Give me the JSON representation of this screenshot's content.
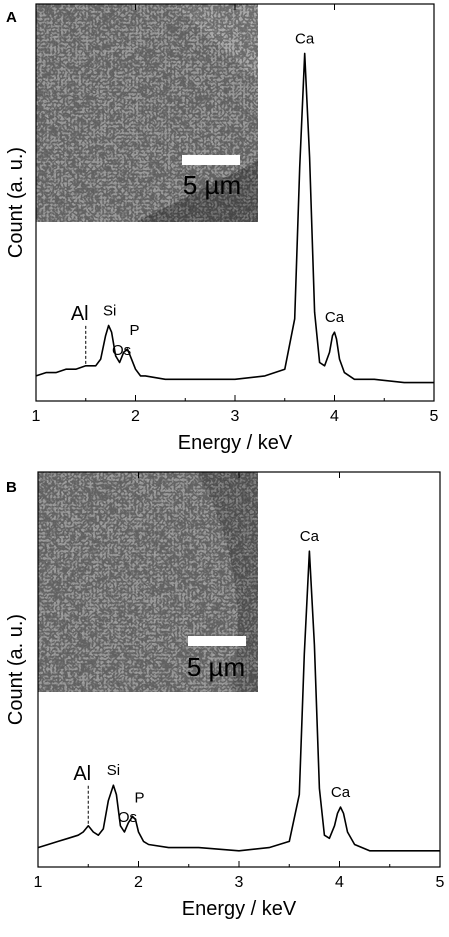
{
  "chart_data": [
    {
      "panel_label": "A",
      "type": "line",
      "xlabel": "Energy / keV",
      "ylabel": "Count (a. u.)",
      "xlim": [
        1,
        5
      ],
      "xticks": [
        1,
        2,
        3,
        4,
        5
      ],
      "ylim": [
        0,
        100
      ],
      "grid": false,
      "x": [
        1.0,
        1.1,
        1.2,
        1.3,
        1.4,
        1.5,
        1.6,
        1.65,
        1.7,
        1.73,
        1.76,
        1.8,
        1.84,
        1.88,
        1.92,
        1.96,
        2.0,
        2.05,
        2.1,
        2.3,
        2.6,
        3.0,
        3.3,
        3.5,
        3.6,
        3.65,
        3.7,
        3.75,
        3.8,
        3.85,
        3.9,
        3.95,
        3.98,
        4.0,
        4.02,
        4.05,
        4.1,
        4.2,
        4.4,
        4.7,
        5.0
      ],
      "y": [
        3,
        4,
        4,
        5,
        5,
        6,
        6,
        8,
        15,
        18,
        16,
        9,
        7,
        10,
        11,
        8,
        5,
        3,
        3,
        2,
        2,
        2,
        3,
        5,
        20,
        65,
        99,
        68,
        22,
        7,
        6,
        10,
        15,
        16,
        14,
        8,
        4,
        2,
        2,
        1,
        1
      ],
      "annotations": [
        {
          "text": "Ca",
          "x": 3.7,
          "y": 99,
          "marker": false
        },
        {
          "text": "Ca",
          "x": 4.0,
          "y": 16,
          "marker": false
        },
        {
          "text": "Al",
          "x": 1.5,
          "y": 6,
          "marker": true
        },
        {
          "text": "Si",
          "x": 1.74,
          "y": 18,
          "marker": false
        },
        {
          "text": "P",
          "x": 1.95,
          "y": 11,
          "marker": false
        },
        {
          "text": "Os",
          "x": 1.9,
          "y": 8,
          "marker": false
        }
      ],
      "inset": {
        "scale_text": "5 µm"
      }
    },
    {
      "panel_label": "B",
      "type": "line",
      "xlabel": "Energy / keV",
      "ylabel": "Count (a. u.)",
      "xlim": [
        1,
        5
      ],
      "xticks": [
        1,
        2,
        3,
        4,
        5
      ],
      "ylim": [
        0,
        100
      ],
      "grid": false,
      "x": [
        1.0,
        1.1,
        1.2,
        1.3,
        1.4,
        1.45,
        1.5,
        1.55,
        1.6,
        1.65,
        1.7,
        1.75,
        1.78,
        1.82,
        1.86,
        1.9,
        1.94,
        1.97,
        2.0,
        2.05,
        2.1,
        2.3,
        2.6,
        3.0,
        3.3,
        3.5,
        3.6,
        3.65,
        3.7,
        3.75,
        3.8,
        3.85,
        3.9,
        3.95,
        3.98,
        4.01,
        4.04,
        4.08,
        4.15,
        4.3,
        4.6,
        5.0
      ],
      "y": [
        3,
        4,
        5,
        6,
        7,
        8,
        10,
        8,
        7,
        9,
        18,
        23,
        20,
        10,
        8,
        11,
        13,
        12,
        8,
        5,
        4,
        3,
        3,
        2,
        3,
        5,
        20,
        65,
        98,
        68,
        22,
        7,
        6,
        10,
        14,
        16,
        14,
        8,
        4,
        2,
        2,
        2
      ],
      "annotations": [
        {
          "text": "Ca",
          "x": 3.7,
          "y": 98,
          "marker": false
        },
        {
          "text": "Ca",
          "x": 4.01,
          "y": 16,
          "marker": false
        },
        {
          "text": "Al",
          "x": 1.5,
          "y": 10,
          "marker": true
        },
        {
          "text": "Si",
          "x": 1.75,
          "y": 23,
          "marker": false
        },
        {
          "text": "P",
          "x": 1.97,
          "y": 13,
          "marker": false
        },
        {
          "text": "Os",
          "x": 1.93,
          "y": 10,
          "marker": false
        }
      ],
      "inset": {
        "scale_text": "5 µm"
      }
    }
  ]
}
